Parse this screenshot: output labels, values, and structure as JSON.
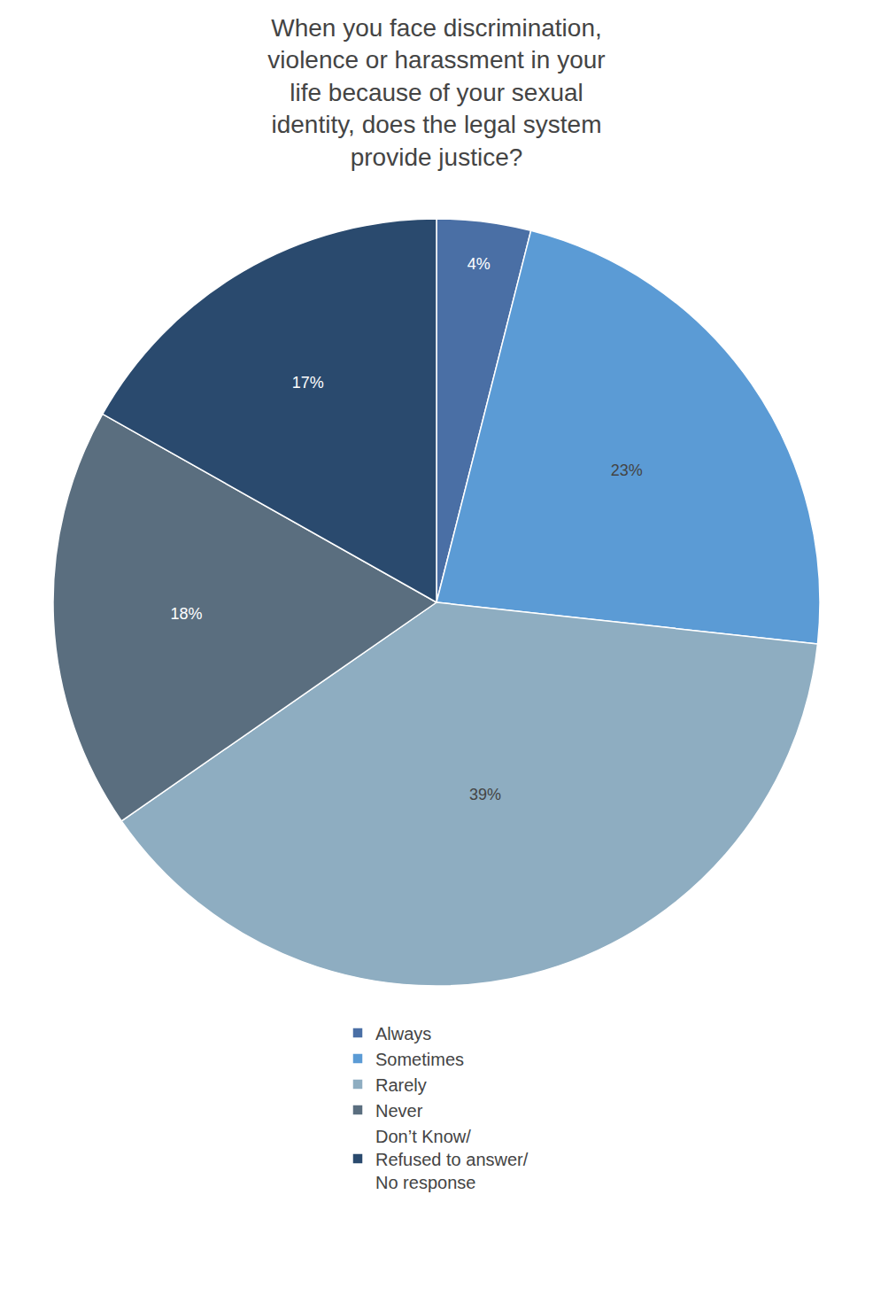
{
  "chart_data": {
    "type": "pie",
    "title": "When you face discrimination,\nviolence or harassment in your\nlife because of your sexual\nidentity, does the legal system\nprovide justice?",
    "categories": [
      "Always",
      "Sometimes",
      "Rarely",
      "Never",
      "Don’t Know/\nRefused to answer/\nNo response"
    ],
    "values": [
      4,
      23,
      39,
      18,
      17
    ],
    "value_labels": [
      "4%",
      "23%",
      "39%",
      "18%",
      "17%"
    ],
    "colors": [
      "#4a6fa5",
      "#5b9bd5",
      "#8eadc1",
      "#5a6e7f",
      "#2a4a6e"
    ],
    "legend": "bottom"
  }
}
